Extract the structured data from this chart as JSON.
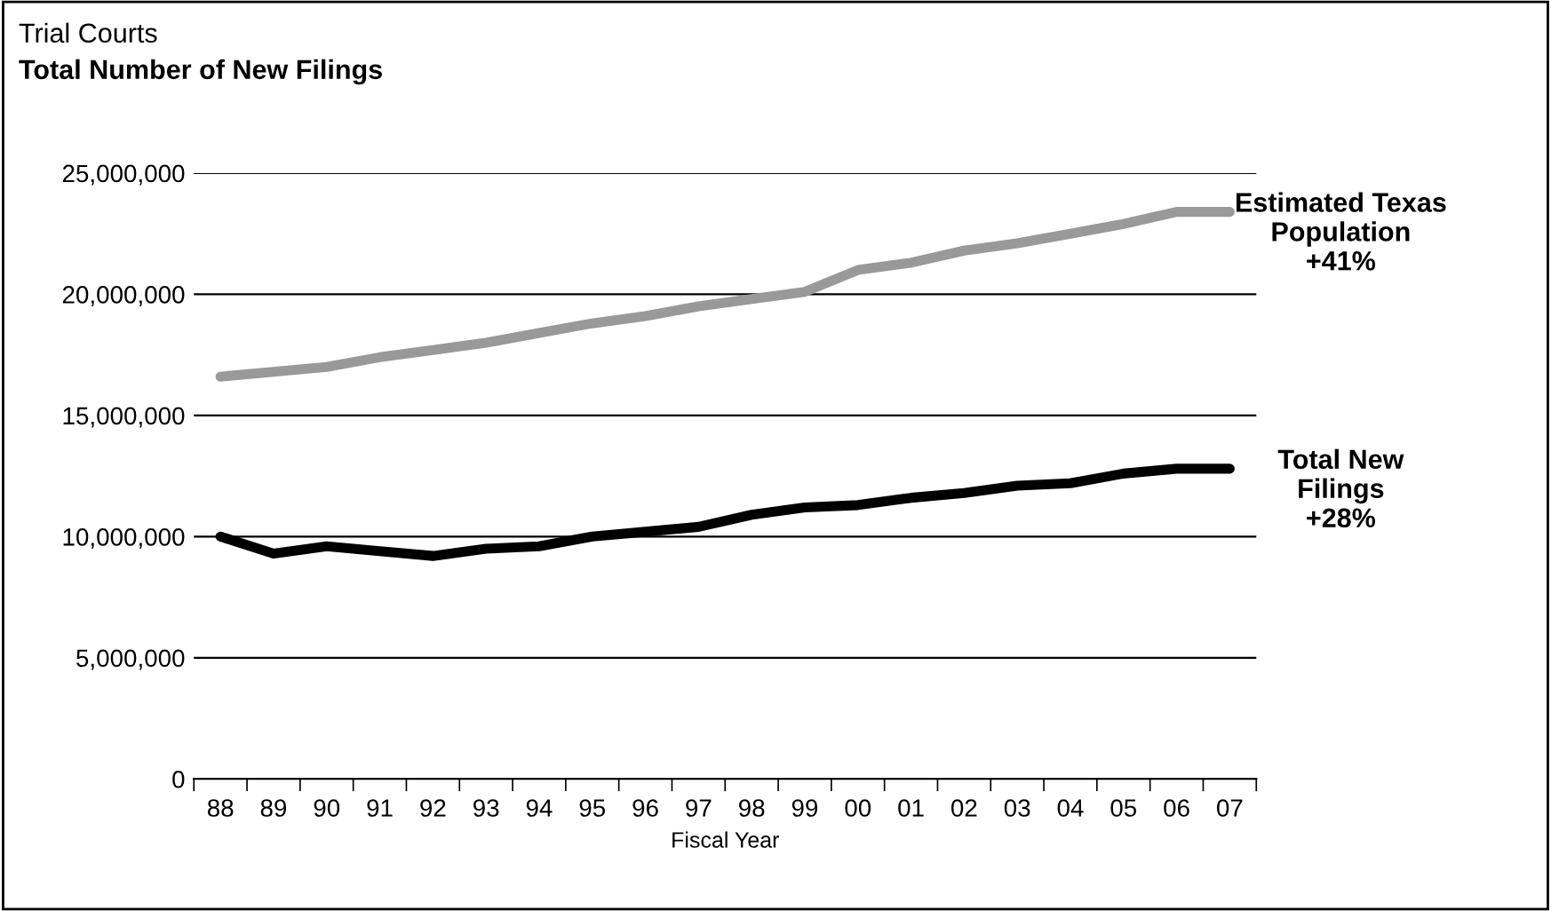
{
  "chart_data": {
    "type": "line",
    "title": "Trial Courts",
    "subtitle": "Total Number of New Filings",
    "xlabel": "Fiscal Year",
    "categories": [
      "88",
      "89",
      "90",
      "91",
      "92",
      "93",
      "94",
      "95",
      "96",
      "97",
      "98",
      "99",
      "00",
      "01",
      "02",
      "03",
      "04",
      "05",
      "06",
      "07"
    ],
    "series": [
      {
        "name": "Estimated Texas\nPopulation\n+41%",
        "color": "#999999",
        "values": [
          16600000,
          16800000,
          17000000,
          17400000,
          17700000,
          18000000,
          18400000,
          18800000,
          19100000,
          19500000,
          19800000,
          20100000,
          21000000,
          21300000,
          21800000,
          22100000,
          22500000,
          22900000,
          23400000,
          23400000
        ]
      },
      {
        "name": "Total New\nFilings\n+28%",
        "color": "#000000",
        "values": [
          10000000,
          9300000,
          9600000,
          9400000,
          9200000,
          9500000,
          9600000,
          10000000,
          10200000,
          10400000,
          10900000,
          11200000,
          11300000,
          11600000,
          11800000,
          12100000,
          12200000,
          12600000,
          12800000,
          12800000
        ]
      }
    ],
    "ylim": [
      0,
      25000000
    ],
    "yticks": [
      {
        "value": 0,
        "label": "0"
      },
      {
        "value": 5000000,
        "label": "5,000,000"
      },
      {
        "value": 10000000,
        "label": "10,000,000"
      },
      {
        "value": 15000000,
        "label": "15,000,000"
      },
      {
        "value": 20000000,
        "label": "20,000,000"
      },
      {
        "value": 25000000,
        "label": "25,000,000"
      }
    ],
    "grid": "y",
    "marker": "none",
    "line_style": "solid",
    "legend": false
  }
}
